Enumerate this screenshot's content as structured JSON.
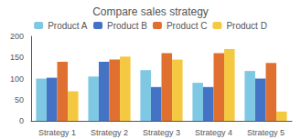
{
  "chart_data": {
    "type": "bar",
    "title": "Compare sales strategy",
    "categories": [
      "Strategy 1",
      "Strategy 2",
      "Strategy 3",
      "Strategy 4",
      "Strategy 5"
    ],
    "series": [
      {
        "name": "Product A",
        "color": "#7ec8e3",
        "values": [
          100,
          105,
          120,
          90,
          118
        ]
      },
      {
        "name": "Product B",
        "color": "#4472c4",
        "values": [
          102,
          140,
          80,
          80,
          100
        ]
      },
      {
        "name": "Product C",
        "color": "#e07030",
        "values": [
          140,
          145,
          160,
          160,
          137
        ]
      },
      {
        "name": "Product D",
        "color": "#f5c842",
        "values": [
          70,
          152,
          145,
          170,
          22
        ]
      }
    ],
    "ylim": [
      0,
      200
    ],
    "yticks": [
      0,
      50,
      100,
      150,
      200
    ],
    "grid": false,
    "legend": "top"
  }
}
